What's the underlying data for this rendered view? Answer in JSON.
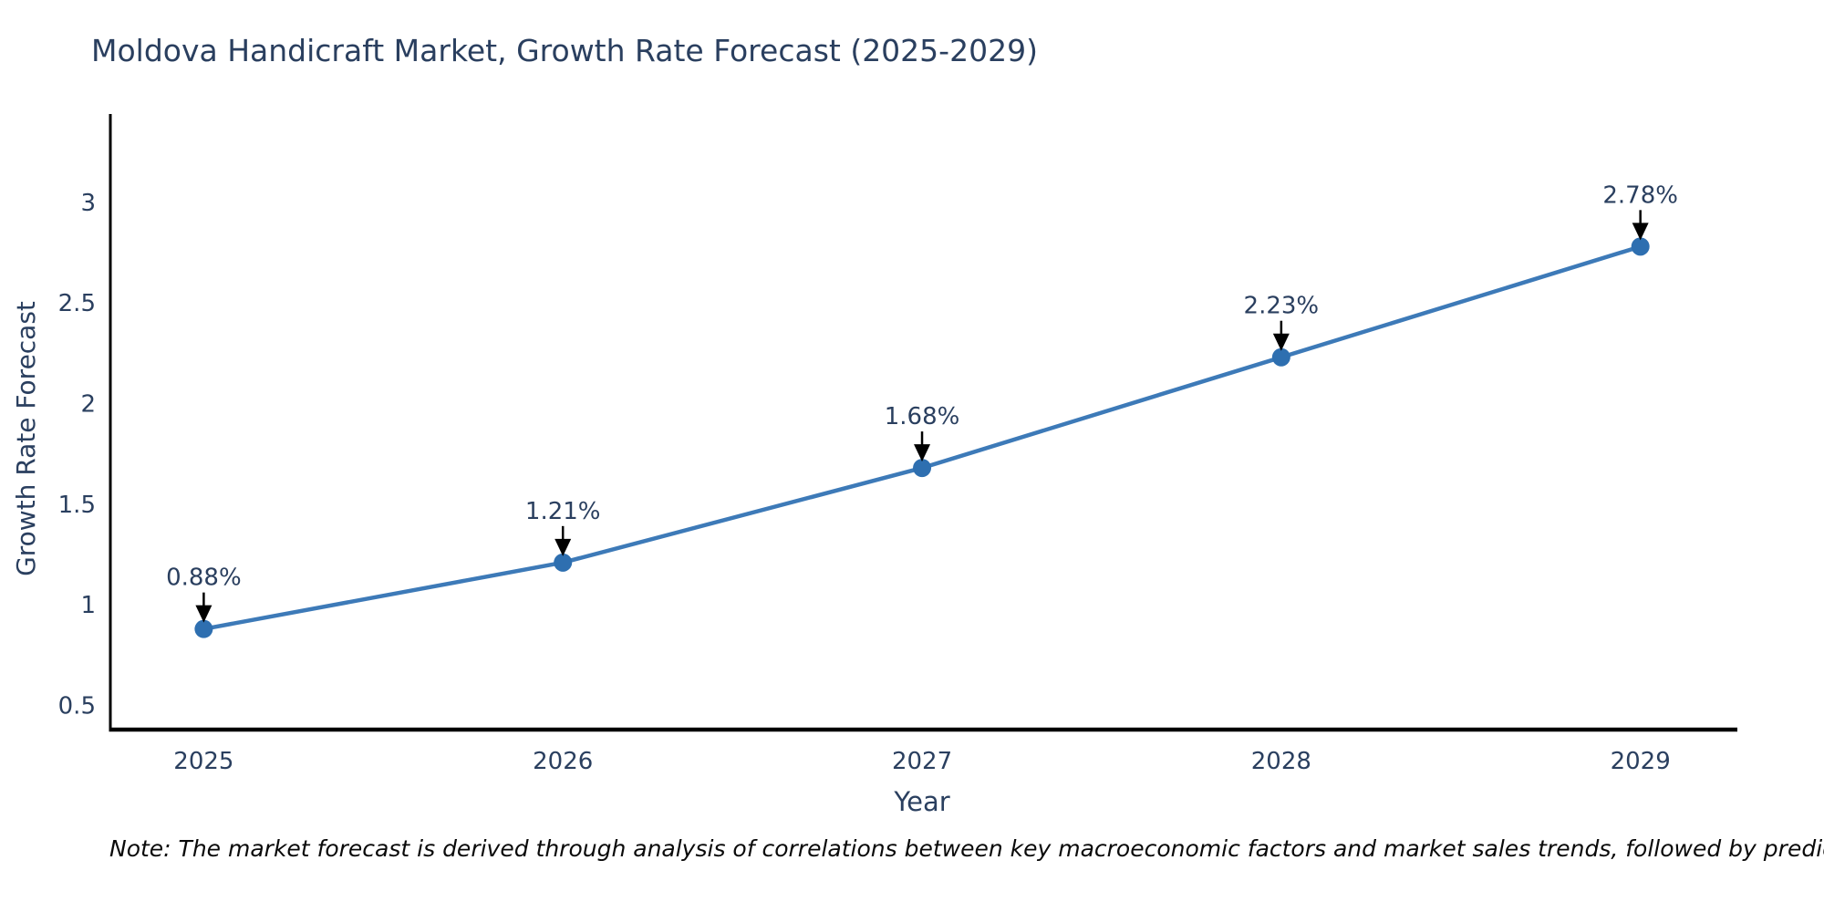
{
  "chart_data": {
    "type": "line",
    "title": "Moldova Handicraft Market, Growth Rate Forecast (2025-2029)",
    "xlabel": "Year",
    "ylabel": "Growth Rate Forecast",
    "x": [
      2025,
      2026,
      2027,
      2028,
      2029
    ],
    "series": [
      {
        "name": "Growth Rate Forecast",
        "values": [
          0.88,
          1.21,
          1.68,
          2.23,
          2.78
        ]
      }
    ],
    "annotations": [
      "0.88%",
      "1.21%",
      "1.68%",
      "2.23%",
      "2.78%"
    ],
    "xtick_labels": [
      "2025",
      "2026",
      "2027",
      "2028",
      "2029"
    ],
    "yticks": [
      0.5,
      1,
      1.5,
      2,
      2.5,
      3
    ],
    "ytick_labels": [
      "0.5",
      "1",
      "1.5",
      "2",
      "2.5",
      "3"
    ],
    "xlim": [
      2024.74,
      2029.27
    ],
    "ylim": [
      0.38,
      3.28
    ],
    "grid": false,
    "legend_position": "none",
    "colors": {
      "line": "#3d7ab8",
      "marker": "#2e6fb0",
      "axis": "#000000",
      "label_text": "#2a3f5f",
      "annotation_arrow": "#000000",
      "background": "#ffffff"
    }
  },
  "footnote": "Note: The market forecast is derived through analysis of correlations between key macroeconomic factors and market sales trends, followed by predictive modeling to project future sales"
}
